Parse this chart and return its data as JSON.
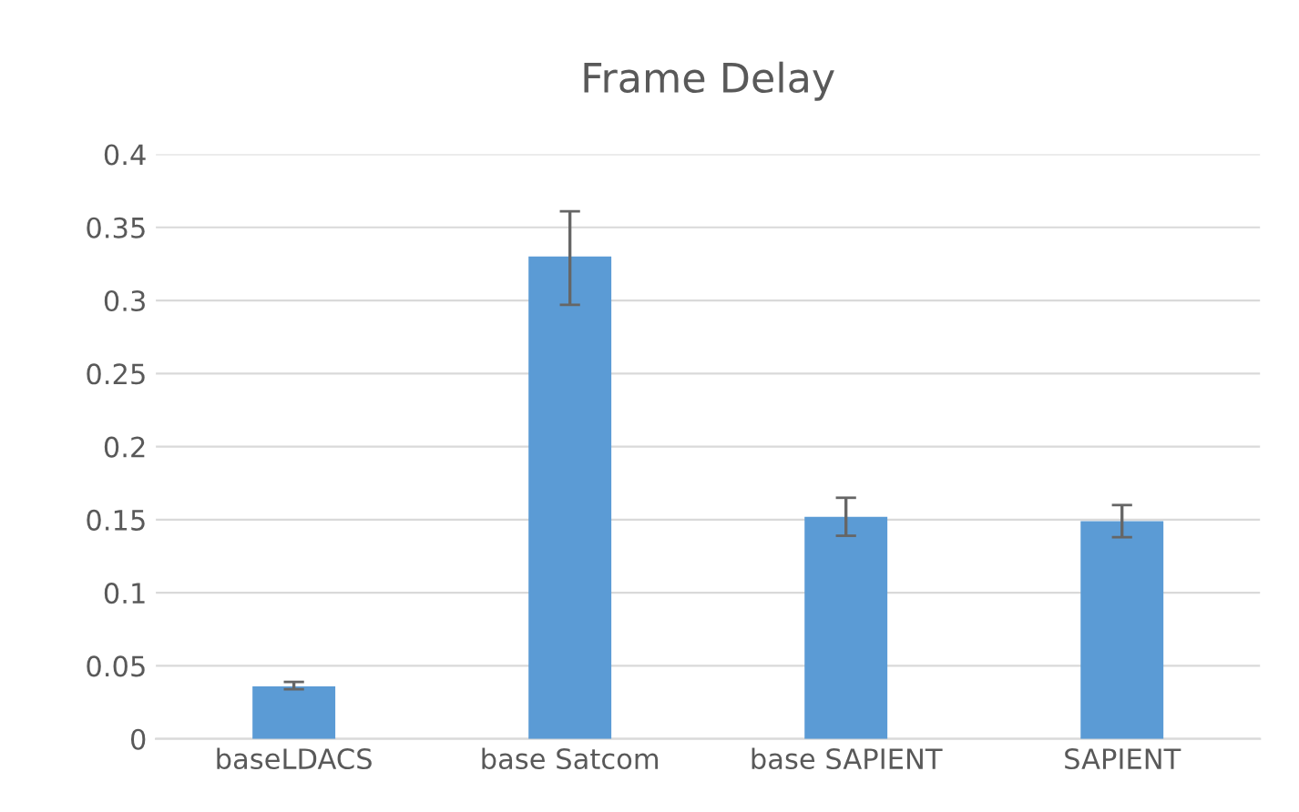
{
  "chart_data": {
    "type": "bar",
    "title": "Frame Delay",
    "categories": [
      "baseLDACS",
      "base Satcom",
      "base SAPIENT",
      "SAPIENT"
    ],
    "values": [
      0.036,
      0.33,
      0.152,
      0.149
    ],
    "errors": [
      [
        0.034,
        0.039
      ],
      [
        0.297,
        0.361
      ],
      [
        0.139,
        0.165
      ],
      [
        0.138,
        0.16
      ]
    ],
    "color": "#5b9bd5",
    "ylim": [
      0,
      0.4
    ],
    "yticks": [
      0,
      0.05,
      0.1,
      0.15,
      0.2,
      0.25,
      0.3,
      0.35,
      0.4
    ],
    "grid": "y",
    "legend": false
  }
}
